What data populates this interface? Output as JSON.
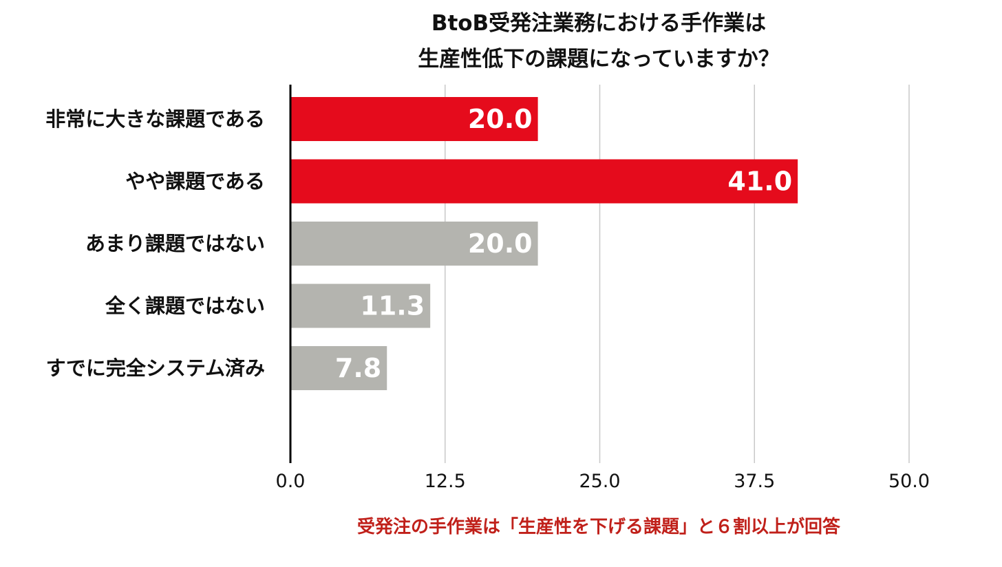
{
  "title_line1": "BtoB受発注業務における手作業は",
  "title_line2": "生産性低下の課題になっていますか？",
  "note": "受発注の手作業は「生産性を下げる課題」と６割以上が回答",
  "colors": {
    "highlight": "#E50B1C",
    "neutral": "#B4B4AF",
    "note": "#C0201A",
    "grid": "#C8C8C8",
    "axis": "#000000"
  },
  "chart_data": {
    "type": "bar",
    "orientation": "horizontal",
    "categories": [
      "非常に大きな課題である",
      "やや課題である",
      "あまり課題ではない",
      "全く課題ではない",
      "すでに完全システム済み"
    ],
    "values": [
      20.0,
      41.0,
      20.0,
      11.3,
      7.8
    ],
    "value_labels": [
      "20.0",
      "41.0",
      "20.0",
      "11.3",
      "7.8"
    ],
    "bar_colors": [
      "#E50B1C",
      "#E50B1C",
      "#B4B4AF",
      "#B4B4AF",
      "#B4B4AF"
    ],
    "xlim": [
      0,
      50
    ],
    "ticks": [
      0.0,
      12.5,
      25.0,
      37.5,
      50.0
    ],
    "tick_labels": [
      "0.0",
      "12.5",
      "25.0",
      "37.5",
      "50.0"
    ],
    "grid": true,
    "title": "BtoB受発注業務における手作業は 生産性低下の課題になっていますか？"
  }
}
